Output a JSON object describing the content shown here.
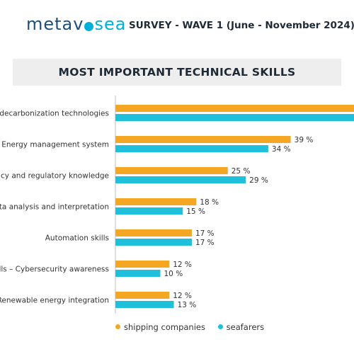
{
  "header": {
    "logo_part1": "metav",
    "logo_part2": "sea",
    "survey_title": "SURVEY - WAVE 1 (June - November 2024)"
  },
  "colors": {
    "shipping_companies": "#f5a623",
    "seafarers": "#1ec0dc",
    "logo_dark": "#1f4e79",
    "title_band": "#eeeeee"
  },
  "chart_data": {
    "type": "bar",
    "orientation": "horizontal",
    "title": "MOST IMPORTANT TECHNICAL SKILLS",
    "categories": [
      "decarbonization technologies",
      "Energy management system",
      "cy and regulatory knowledge",
      "ta analysis and interpretation",
      "Automation skills",
      "lls – Cybersecurity awareness",
      "Renewable energy integration"
    ],
    "series": [
      {
        "name": "shipping companies",
        "color": "#f5a623",
        "values": [
          null,
          39,
          25,
          18,
          17,
          12,
          12
        ]
      },
      {
        "name": "seafarers",
        "color": "#1ec0dc",
        "values": [
          null,
          34,
          29,
          15,
          17,
          10,
          13
        ]
      }
    ],
    "value_labels": [
      [
        "",
        ""
      ],
      [
        "39 %",
        "34 %"
      ],
      [
        "25 %",
        "29 %"
      ],
      [
        "18 %",
        "15 %"
      ],
      [
        "17 %",
        "17 %"
      ],
      [
        "12 %",
        "10 %"
      ],
      [
        "12 %",
        "13 %"
      ]
    ],
    "legend": "bottom",
    "grid": false
  }
}
